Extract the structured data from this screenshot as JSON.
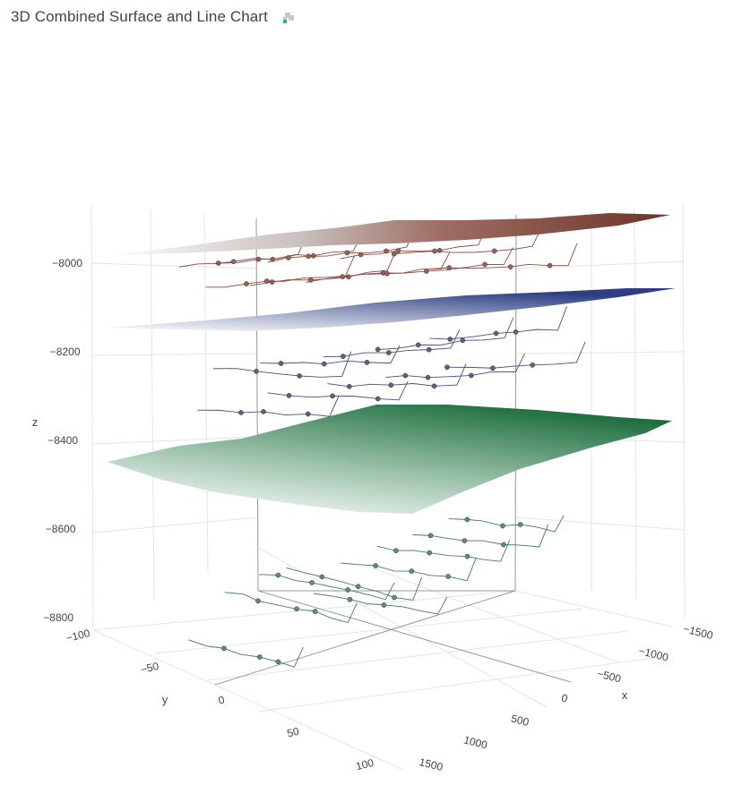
{
  "header": {
    "title": "3D Combined Surface and Line Chart",
    "icon": "puzzle-icon"
  },
  "chart_data": {
    "type": "3d-surface-line",
    "title": "3D Combined Surface and Line Chart",
    "axes": {
      "x": {
        "label": "x",
        "range": [
          -1500,
          1500
        ],
        "ticks": [
          -1500,
          -1000,
          -500,
          0,
          500,
          1000,
          1500
        ]
      },
      "y": {
        "label": "y",
        "range": [
          -100,
          100
        ],
        "ticks": [
          -100,
          -50,
          0,
          50,
          100
        ]
      },
      "z": {
        "label": "z",
        "range": [
          -8800,
          -7880
        ],
        "ticks": [
          -8000,
          -8200,
          -8400,
          -8600,
          -8800
        ]
      }
    },
    "surfaces": [
      {
        "name": "",
        "z_level_approx": -7960,
        "colorscale": [
          "#ffffff",
          "#6e3429"
        ]
      },
      {
        "name": "",
        "z_level_approx": -8140,
        "colorscale": [
          "#ffffff",
          "#2d3f82"
        ]
      },
      {
        "name": "",
        "z_level_approx": -8420,
        "colorscale": [
          "#ffffff",
          "#1f6e3f"
        ]
      }
    ],
    "line_groups": [
      {
        "z_level_approx": -8000,
        "color": "#8c4a40",
        "marker_color": "#9a6158"
      },
      {
        "z_level_approx": -8220,
        "color": "#45507a",
        "marker_color": "#5c6182"
      },
      {
        "z_level_approx": -8700,
        "color": "#3f7f5c",
        "marker_color": "#5e8e72"
      }
    ],
    "grid": true,
    "legend": "none"
  }
}
